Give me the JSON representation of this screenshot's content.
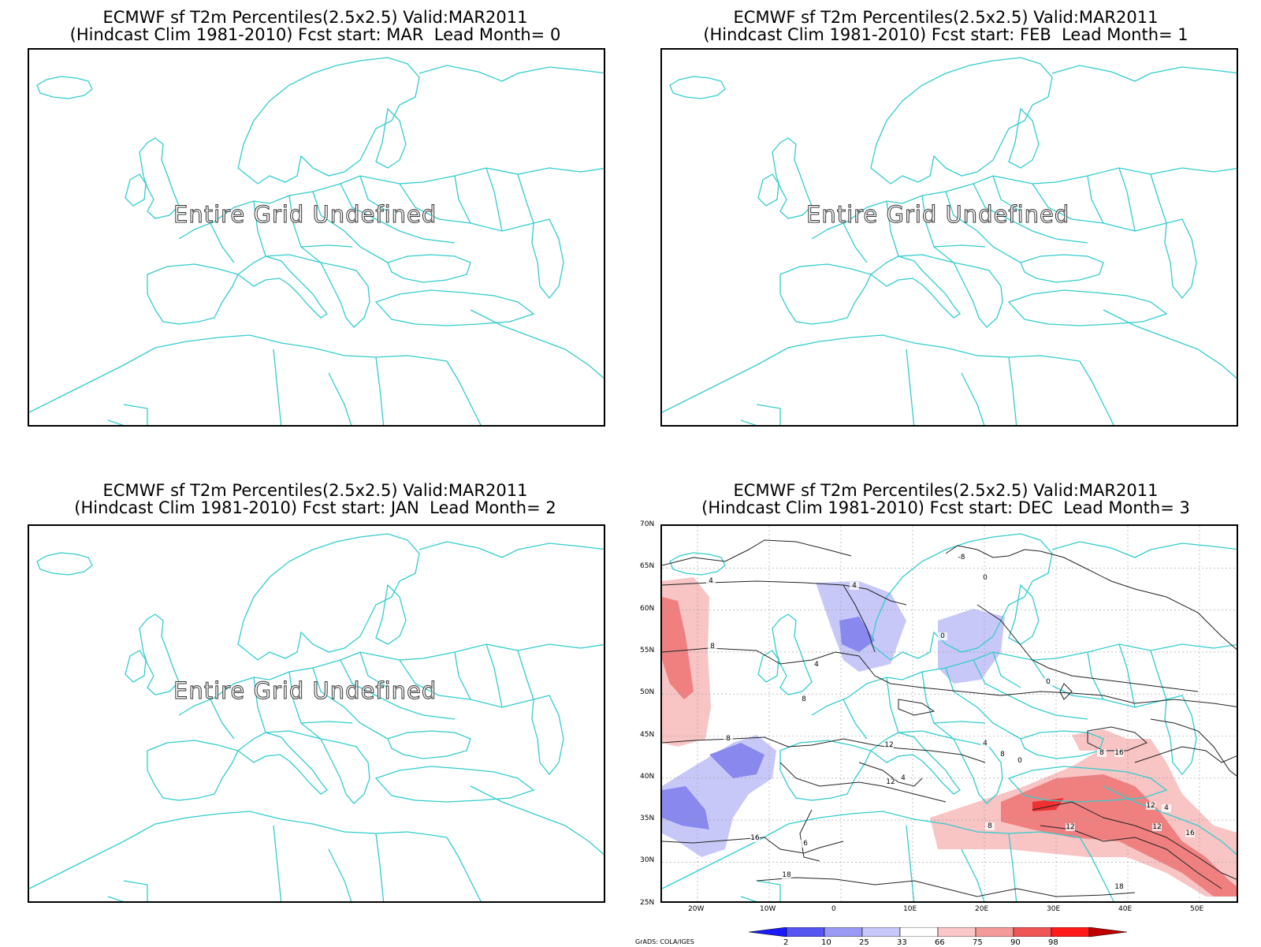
{
  "panels": [
    {
      "title_line1": "ECMWF sf T2m Percentiles(2.5x2.5) Valid:MAR2011",
      "title_line2": "(Hindcast Clim 1981-2010) Fcst start: MAR  Lead Month= 0",
      "message": "Entire Grid Undefined"
    },
    {
      "title_line1": "ECMWF sf T2m Percentiles(2.5x2.5) Valid:MAR2011",
      "title_line2": "(Hindcast Clim 1981-2010) Fcst start: FEB  Lead Month= 1",
      "message": "Entire Grid Undefined"
    },
    {
      "title_line1": "ECMWF sf T2m Percentiles(2.5x2.5) Valid:MAR2011",
      "title_line2": "(Hindcast Clim 1981-2010) Fcst start: JAN  Lead Month= 2",
      "message": "Entire Grid Undefined"
    },
    {
      "title_line1": "ECMWF sf T2m Percentiles(2.5x2.5) Valid:MAR2011",
      "title_line2": "(Hindcast Clim 1981-2010) Fcst start: DEC  Lead Month= 3",
      "lat_labels": [
        "70N",
        "65N",
        "60N",
        "55N",
        "50N",
        "45N",
        "40N",
        "35N",
        "30N",
        "25N"
      ],
      "lon_labels": [
        "20W",
        "10W",
        "0",
        "10E",
        "20E",
        "30E",
        "40E",
        "50E"
      ],
      "contour_labels": [
        "-8",
        "4",
        "0",
        "4",
        "8",
        "4",
        "0",
        "0",
        "4",
        "8",
        "12",
        "8",
        "8",
        "4",
        "12",
        "12",
        "8",
        "12",
        "16",
        "12",
        "16",
        "16",
        "6",
        "18",
        "18",
        "8",
        "0",
        "4"
      ]
    }
  ],
  "colorbar": {
    "labels": [
      "2",
      "10",
      "25",
      "33",
      "66",
      "75",
      "90",
      "98"
    ],
    "colors": [
      "#1a1aff",
      "#5555f0",
      "#9a9af5",
      "#c8c8fa",
      "#ffffff",
      "#fac8c8",
      "#f59a9a",
      "#f05555",
      "#ff1a1a",
      "#c00000"
    ]
  },
  "credit": "GrADS: COLA/IGES",
  "colors": {
    "coastline": "#33cccc",
    "frame": "#000000",
    "warm_light": "#f8c4c4",
    "warm_mid": "#f08080",
    "warm_dark": "#ee3030",
    "cold_light": "#c8c8f8",
    "cold_mid": "#8888ee"
  }
}
